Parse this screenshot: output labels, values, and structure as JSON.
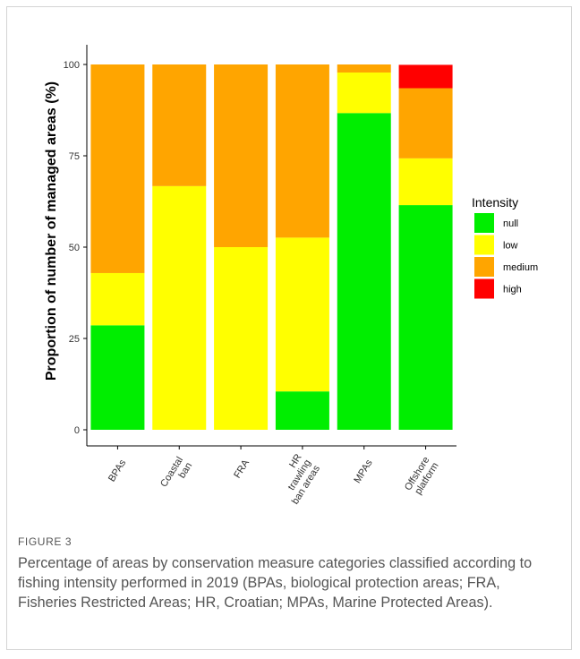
{
  "figure": {
    "label": "FIGURE 3",
    "caption": "Percentage of areas by conservation measure categories classified according to fishing intensity performed in 2019 (BPAs, biological protection areas; FRA, Fisheries Restricted Areas; HR, Croatian; MPAs, Marine Protected Areas)."
  },
  "chart_data": {
    "type": "bar",
    "stacked": true,
    "title": "",
    "xlabel": "",
    "ylabel": "Proportion of number of managed areas (%)",
    "ylim": [
      0,
      100
    ],
    "yticks": [
      0,
      25,
      50,
      75,
      100
    ],
    "grid": false,
    "legend_title": "Intensity",
    "legend_position": "right",
    "categories": [
      [
        "BPAs"
      ],
      [
        "Coastal",
        "ban"
      ],
      [
        "FRA"
      ],
      [
        "HR",
        "trawling",
        "ban areas"
      ],
      [
        "MPAs"
      ],
      [
        "Offshore",
        "platform"
      ]
    ],
    "series": [
      {
        "name": "null",
        "color": "#00ee00",
        "values": [
          28.6,
          0,
          0,
          10.5,
          86.7,
          61.5
        ]
      },
      {
        "name": "low",
        "color": "#ffff00",
        "values": [
          14.3,
          66.7,
          50.0,
          42.1,
          11.1,
          12.8
        ]
      },
      {
        "name": "medium",
        "color": "#ffa500",
        "values": [
          57.1,
          33.3,
          50.0,
          47.4,
          2.2,
          19.2
        ]
      },
      {
        "name": "high",
        "color": "#ff0000",
        "values": [
          0,
          0,
          0,
          0,
          0,
          6.4
        ]
      }
    ]
  }
}
